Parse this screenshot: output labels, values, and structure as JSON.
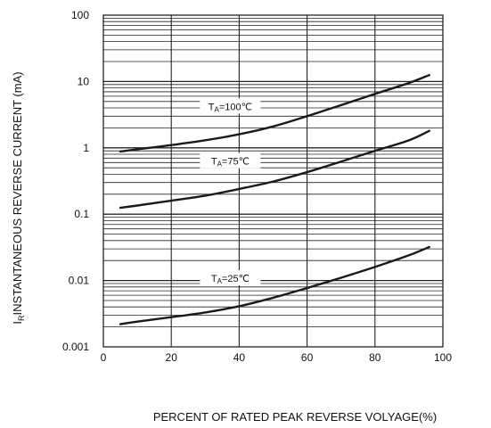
{
  "chart_data": {
    "type": "line",
    "title": "",
    "xlabel": "PERCENT OF RATED PEAK REVERSE VOLYAGE(%)",
    "ylabel_sub": "R",
    "ylabel_main": "INSTANTANEOUS REVERSE CURRENT (mA)",
    "ylabel_prefix": "I",
    "xlim": [
      0,
      100
    ],
    "ylim": [
      0.001,
      100
    ],
    "y_scale": "log",
    "grid": true,
    "x_ticks": [
      0,
      20,
      40,
      60,
      80,
      100
    ],
    "x_tick_labels": [
      "0",
      "20",
      "40",
      "60",
      "80",
      "100"
    ],
    "y_ticks": [
      0.001,
      0.01,
      0.1,
      1,
      10,
      100
    ],
    "y_tick_labels": [
      "0.001",
      "0.01",
      "0.1",
      "1",
      "10",
      "100"
    ],
    "series": [
      {
        "name": "TA=100℃",
        "label_prefix": "T",
        "label_sub": "A",
        "label_suffix": "=100℃",
        "x": [
          5,
          10,
          20,
          30,
          40,
          50,
          60,
          70,
          80,
          90,
          96
        ],
        "values": [
          0.88,
          0.95,
          1.1,
          1.3,
          1.6,
          2.1,
          3.0,
          4.4,
          6.5,
          9.5,
          12.5
        ]
      },
      {
        "name": "TA=75℃",
        "label_prefix": "T",
        "label_sub": "A",
        "label_suffix": "=75℃",
        "x": [
          5,
          10,
          20,
          30,
          40,
          50,
          60,
          70,
          80,
          90,
          96
        ],
        "values": [
          0.125,
          0.135,
          0.16,
          0.19,
          0.24,
          0.31,
          0.43,
          0.62,
          0.9,
          1.3,
          1.8
        ]
      },
      {
        "name": "TA=25℃",
        "label_prefix": "T",
        "label_sub": "A",
        "label_suffix": "=25℃",
        "x": [
          5,
          10,
          20,
          30,
          40,
          50,
          60,
          70,
          80,
          90,
          96
        ],
        "values": [
          0.0022,
          0.0024,
          0.0028,
          0.0033,
          0.0041,
          0.0055,
          0.0077,
          0.011,
          0.016,
          0.024,
          0.032
        ]
      }
    ]
  }
}
